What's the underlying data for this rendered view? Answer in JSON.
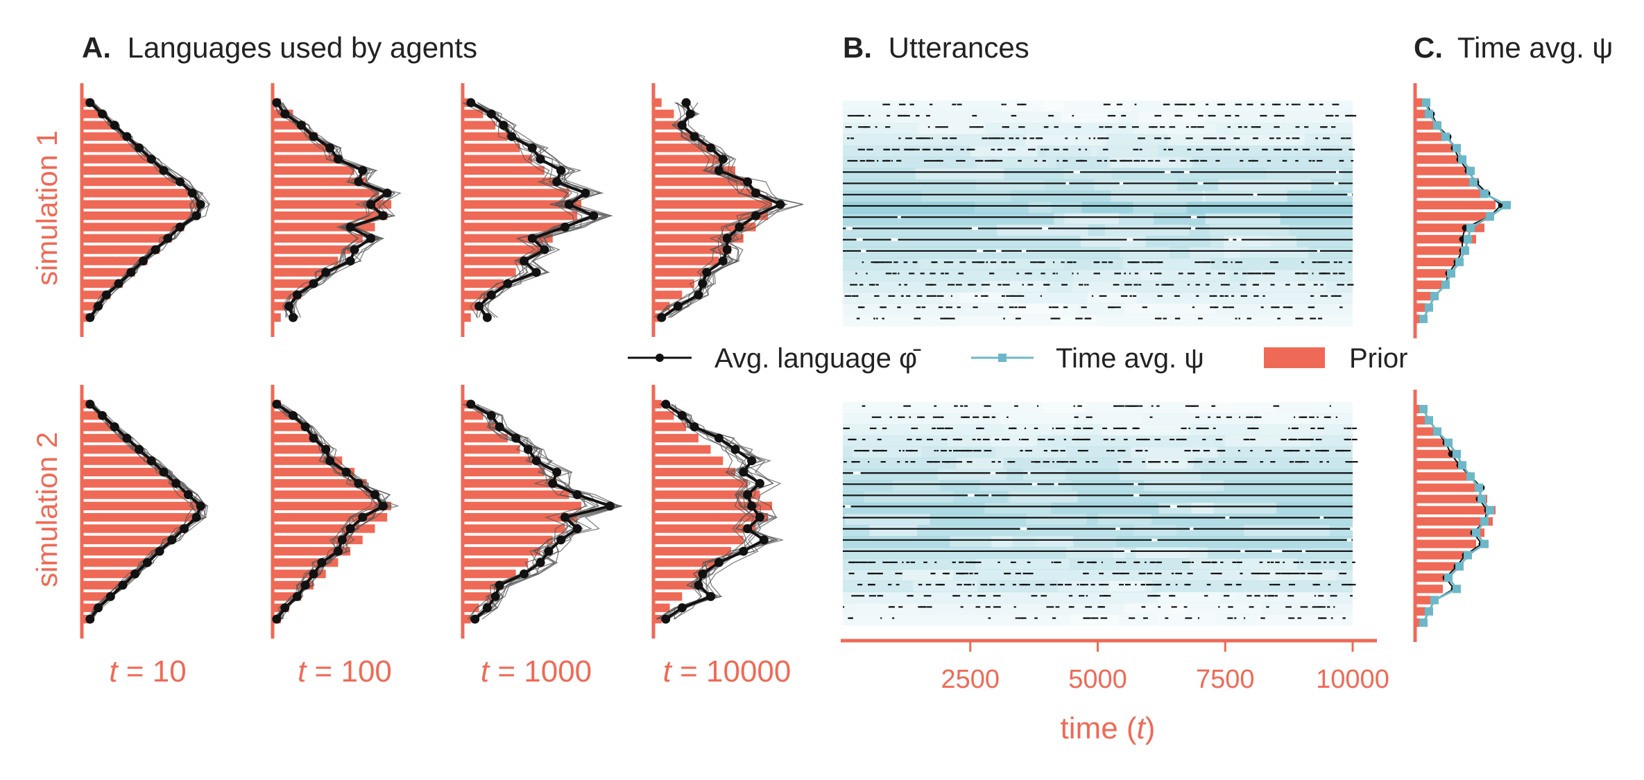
{
  "colors": {
    "prior": "#ee6a56",
    "avg_language": "#111111",
    "time_avg": "#6cb8c9",
    "agent_lines": "#555555",
    "utterance_bg": "#7cc4d3",
    "utterance_marks": "#111111"
  },
  "titles": {
    "a_letter": "A.",
    "a_text": "Languages used by agents",
    "b_letter": "B.",
    "b_text": "Utterances",
    "c_letter": "C.",
    "c_text": "Time avg. ψ"
  },
  "rows": [
    "simulation 1",
    "simulation 2"
  ],
  "time_labels": [
    {
      "t": "t",
      "eq": " = ",
      "val": "10"
    },
    {
      "t": "t",
      "eq": " = ",
      "val": "100"
    },
    {
      "t": "t",
      "eq": " = ",
      "val": "1000"
    },
    {
      "t": "t",
      "eq": " = ",
      "val": "10000"
    }
  ],
  "legend": [
    {
      "label": "Avg. language φ̄",
      "kind": "line-dot",
      "icon": "black-line-dot-icon"
    },
    {
      "label": "Time avg. ψ",
      "kind": "line-square",
      "icon": "teal-line-square-icon"
    },
    {
      "label": "Prior",
      "kind": "patch",
      "icon": "red-patch-icon"
    }
  ],
  "chart_data": [
    {
      "type": "bar",
      "panel": "A",
      "series": [
        {
          "name": "Prior",
          "values": [
            0.02,
            0.05,
            0.08,
            0.11,
            0.14,
            0.17,
            0.2,
            0.23,
            0.26,
            0.29,
            0.28,
            0.25,
            0.22,
            0.19,
            0.16,
            0.13,
            0.1,
            0.07,
            0.04,
            0.02
          ]
        },
        {
          "name": "Avg. language φ̄",
          "sim": 1,
          "t": 10,
          "values": [
            0.02,
            0.05,
            0.08,
            0.11,
            0.14,
            0.17,
            0.2,
            0.24,
            0.27,
            0.29,
            0.28,
            0.24,
            0.21,
            0.18,
            0.15,
            0.12,
            0.09,
            0.06,
            0.04,
            0.02
          ]
        },
        {
          "name": "Avg. language φ̄",
          "sim": 1,
          "t": 100,
          "values": [
            0.01,
            0.03,
            0.07,
            0.1,
            0.14,
            0.16,
            0.22,
            0.21,
            0.28,
            0.24,
            0.27,
            0.19,
            0.24,
            0.2,
            0.19,
            0.13,
            0.1,
            0.06,
            0.04,
            0.05
          ]
        },
        {
          "name": "Avg. language φ̄",
          "sim": 1,
          "t": 1000,
          "values": [
            0.02,
            0.07,
            0.1,
            0.12,
            0.17,
            0.19,
            0.24,
            0.23,
            0.3,
            0.26,
            0.32,
            0.25,
            0.17,
            0.2,
            0.15,
            0.18,
            0.11,
            0.07,
            0.04,
            0.06
          ]
        },
        {
          "name": "Avg. language φ̄",
          "sim": 1,
          "t": 10000,
          "values": [
            0.08,
            0.09,
            0.07,
            0.1,
            0.14,
            0.17,
            0.16,
            0.23,
            0.25,
            0.31,
            0.25,
            0.21,
            0.18,
            0.18,
            0.17,
            0.13,
            0.12,
            0.11,
            0.06,
            0.02
          ]
        },
        {
          "name": "Avg. language φ̄",
          "sim": 2,
          "t": 10,
          "values": [
            0.02,
            0.05,
            0.08,
            0.11,
            0.14,
            0.17,
            0.2,
            0.23,
            0.26,
            0.29,
            0.28,
            0.25,
            0.22,
            0.19,
            0.16,
            0.13,
            0.1,
            0.07,
            0.04,
            0.02
          ]
        },
        {
          "name": "Avg. language φ̄",
          "sim": 2,
          "t": 100,
          "values": [
            0.01,
            0.05,
            0.08,
            0.1,
            0.13,
            0.14,
            0.18,
            0.21,
            0.25,
            0.27,
            0.22,
            0.19,
            0.17,
            0.16,
            0.12,
            0.1,
            0.08,
            0.06,
            0.03,
            0.01
          ]
        },
        {
          "name": "Avg. language φ̄",
          "sim": 2,
          "t": 1000,
          "values": [
            0.02,
            0.07,
            0.09,
            0.13,
            0.16,
            0.18,
            0.23,
            0.22,
            0.28,
            0.36,
            0.25,
            0.28,
            0.24,
            0.21,
            0.19,
            0.15,
            0.09,
            0.08,
            0.06,
            0.03
          ]
        },
        {
          "name": "Avg. language φ̄",
          "sim": 2,
          "t": 10000,
          "values": [
            0.03,
            0.07,
            0.1,
            0.16,
            0.2,
            0.24,
            0.22,
            0.26,
            0.23,
            0.24,
            0.26,
            0.23,
            0.27,
            0.22,
            0.16,
            0.12,
            0.11,
            0.14,
            0.07,
            0.03
          ]
        }
      ]
    },
    {
      "type": "heatmap",
      "panel": "B",
      "xlabel": "time (t)",
      "xlim": [
        0,
        10000
      ],
      "xticks": [
        2500,
        5000,
        7500,
        10000
      ],
      "note": "rows = 20 categories; teal intensity = usage density; black ticks = utterances"
    },
    {
      "type": "bar",
      "panel": "C",
      "series": [
        {
          "name": "Prior",
          "sim": 1,
          "values": [
            0.04,
            0.06,
            0.09,
            0.11,
            0.14,
            0.17,
            0.2,
            0.23,
            0.26,
            0.29,
            0.28,
            0.25,
            0.22,
            0.19,
            0.16,
            0.13,
            0.1,
            0.07,
            0.04,
            0.02
          ]
        },
        {
          "name": "Time avg. ψ",
          "sim": 1,
          "values": [
            0.04,
            0.05,
            0.08,
            0.11,
            0.15,
            0.17,
            0.2,
            0.21,
            0.25,
            0.33,
            0.27,
            0.2,
            0.19,
            0.18,
            0.16,
            0.13,
            0.11,
            0.07,
            0.05,
            0.03
          ]
        },
        {
          "name": "Avg. language φ̄",
          "sim": 1,
          "values": [
            0.04,
            0.06,
            0.08,
            0.12,
            0.14,
            0.16,
            0.19,
            0.22,
            0.26,
            0.31,
            0.27,
            0.18,
            0.17,
            0.17,
            0.15,
            0.12,
            0.11,
            0.07,
            0.05,
            0.03
          ]
        },
        {
          "name": "Prior",
          "sim": 2,
          "values": [
            0.02,
            0.05,
            0.08,
            0.11,
            0.14,
            0.17,
            0.2,
            0.23,
            0.26,
            0.29,
            0.28,
            0.25,
            0.22,
            0.19,
            0.16,
            0.13,
            0.1,
            0.07,
            0.04,
            0.02
          ]
        },
        {
          "name": "Time avg. ψ",
          "sim": 2,
          "values": [
            0.03,
            0.05,
            0.08,
            0.12,
            0.15,
            0.17,
            0.2,
            0.23,
            0.24,
            0.27,
            0.25,
            0.22,
            0.25,
            0.19,
            0.16,
            0.12,
            0.15,
            0.07,
            0.05,
            0.03
          ]
        },
        {
          "name": "Avg. language φ̄",
          "sim": 2,
          "values": [
            0.03,
            0.05,
            0.08,
            0.11,
            0.13,
            0.16,
            0.2,
            0.24,
            0.23,
            0.26,
            0.25,
            0.21,
            0.24,
            0.18,
            0.15,
            0.11,
            0.14,
            0.07,
            0.05,
            0.03
          ]
        }
      ]
    }
  ]
}
